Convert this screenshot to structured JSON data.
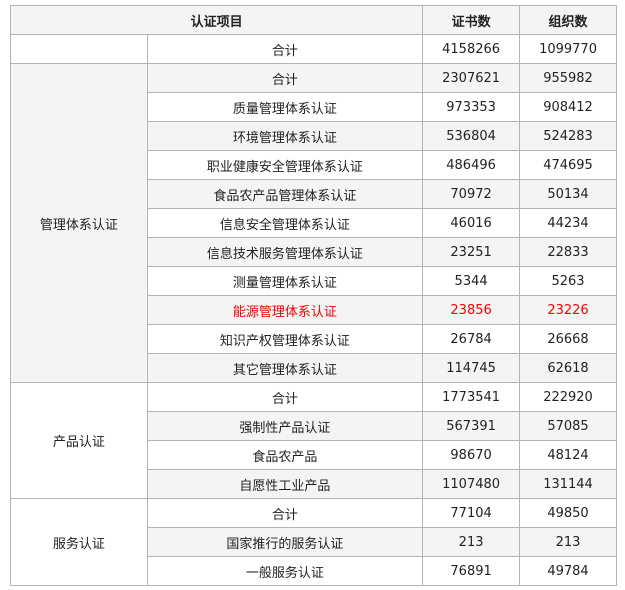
{
  "header": {
    "item": "认证项目",
    "certificates": "证书数",
    "organizations": "组织数"
  },
  "accent_red": "#ff0000",
  "rows": [
    {
      "group": "",
      "item": "合计",
      "certificates": "4158266",
      "organizations": "1099770",
      "rowspan": 1
    },
    {
      "group": "管理体系认证",
      "item": "合计",
      "certificates": "2307621",
      "organizations": "955982",
      "rowspan": 11
    },
    {
      "item": "质量管理体系认证",
      "certificates": "973353",
      "organizations": "908412"
    },
    {
      "item": "环境管理体系认证",
      "certificates": "536804",
      "organizations": "524283"
    },
    {
      "item": "职业健康安全管理体系认证",
      "certificates": "486496",
      "organizations": "474695"
    },
    {
      "item": "食品农产品管理体系认证",
      "certificates": "70972",
      "organizations": "50134"
    },
    {
      "item": "信息安全管理体系认证",
      "certificates": "46016",
      "organizations": "44234"
    },
    {
      "item": "信息技术服务管理体系认证",
      "certificates": "23251",
      "organizations": "22833"
    },
    {
      "item": "测量管理体系认证",
      "certificates": "5344",
      "organizations": "5263"
    },
    {
      "item": "能源管理体系认证",
      "certificates": "23856",
      "organizations": "23226",
      "highlight": true
    },
    {
      "item": "知识产权管理体系认证",
      "certificates": "26784",
      "organizations": "26668"
    },
    {
      "item": "其它管理体系认证",
      "certificates": "114745",
      "organizations": "62618"
    },
    {
      "group": "产品认证",
      "item": "合计",
      "certificates": "1773541",
      "organizations": "222920",
      "rowspan": 4
    },
    {
      "item": "强制性产品认证",
      "certificates": "567391",
      "organizations": "57085"
    },
    {
      "item": "食品农产品",
      "certificates": "98670",
      "organizations": "48124"
    },
    {
      "item": "自愿性工业产品",
      "certificates": "1107480",
      "organizations": "131144"
    },
    {
      "group": "服务认证",
      "item": "合计",
      "certificates": "77104",
      "organizations": "49850",
      "rowspan": 3
    },
    {
      "item": "国家推行的服务认证",
      "certificates": "213",
      "organizations": "213"
    },
    {
      "item": "一般服务认证",
      "certificates": "76891",
      "organizations": "49784"
    }
  ]
}
